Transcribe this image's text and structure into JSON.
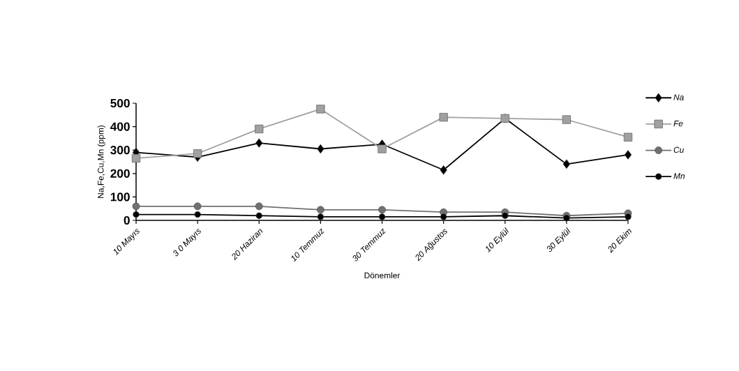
{
  "chart_data": {
    "type": "line",
    "xlabel": "Dönemler",
    "ylabel": "Na,Fe,Cu,Mn (ppm)",
    "categories": [
      "10 Mayıs",
      "3 0 Mayıs",
      "20 Haziran",
      "10 Temmuz",
      "30 Temmuz",
      "20 Ağustos",
      "10 Eylül",
      "30 Eylül",
      "20 Ekim"
    ],
    "series": [
      {
        "name": "Na",
        "color": "#000000",
        "marker": "diamond",
        "values": [
          290,
          270,
          330,
          305,
          325,
          215,
          435,
          240,
          280
        ]
      },
      {
        "name": "Fe",
        "color": "#a0a0a0",
        "marker": "square",
        "values": [
          265,
          285,
          390,
          475,
          305,
          440,
          435,
          430,
          355
        ]
      },
      {
        "name": "Cu",
        "color": "#707070",
        "marker": "circle",
        "values": [
          60,
          60,
          60,
          45,
          45,
          35,
          35,
          20,
          30
        ]
      },
      {
        "name": "Mn",
        "color": "#000000",
        "marker": "circle",
        "values": [
          25,
          25,
          20,
          15,
          15,
          15,
          20,
          10,
          15
        ]
      }
    ],
    "ylim": [
      0,
      500
    ],
    "yticks": [
      0,
      100,
      200,
      300,
      400,
      500
    ],
    "legend": "right",
    "grid": false
  }
}
